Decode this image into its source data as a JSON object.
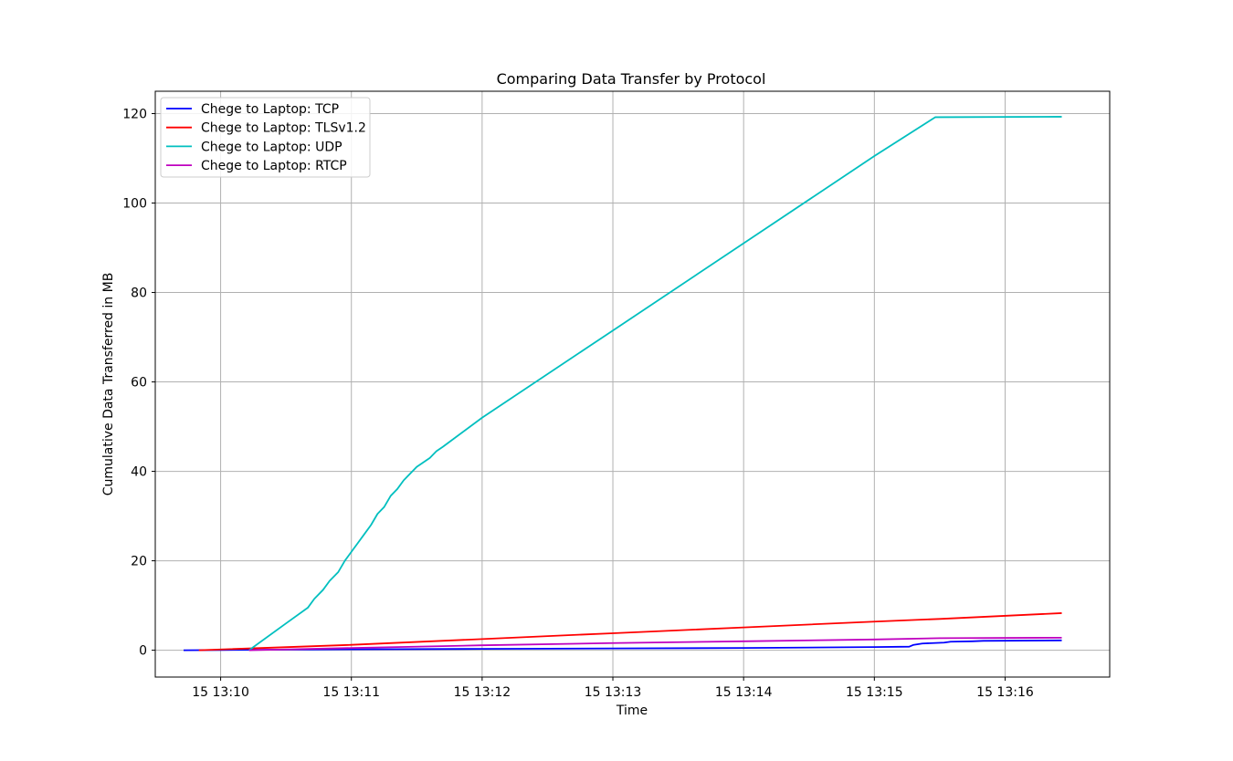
{
  "chart_data": {
    "type": "line",
    "title": "Comparing Data Transfer by Protocol",
    "xlabel": "Time",
    "ylabel": "Cumulative Data Transferred in MB",
    "x_unit": "minutes",
    "xlim": [
      "13:09:30",
      "13:16:48"
    ],
    "ylim": [
      -6,
      125
    ],
    "x_ticks": [
      {
        "time": "13:10:00",
        "label": "15 13:10"
      },
      {
        "time": "13:11:00",
        "label": "15 13:11"
      },
      {
        "time": "13:12:00",
        "label": "15 13:12"
      },
      {
        "time": "13:13:00",
        "label": "15 13:13"
      },
      {
        "time": "13:14:00",
        "label": "15 13:14"
      },
      {
        "time": "13:15:00",
        "label": "15 13:15"
      },
      {
        "time": "13:16:00",
        "label": "15 13:16"
      }
    ],
    "y_ticks": [
      0,
      20,
      40,
      60,
      80,
      100,
      120
    ],
    "grid": true,
    "legend_position": "top-left",
    "series": [
      {
        "name": "Chege to Laptop: TCP",
        "color": "#0000ff",
        "points": [
          [
            "13:09:43",
            0.0
          ],
          [
            "13:10:00",
            0.05
          ],
          [
            "13:11:00",
            0.2
          ],
          [
            "13:12:00",
            0.3
          ],
          [
            "13:13:00",
            0.4
          ],
          [
            "13:14:00",
            0.5
          ],
          [
            "13:15:00",
            0.7
          ],
          [
            "13:15:16",
            0.8
          ],
          [
            "13:15:18",
            1.2
          ],
          [
            "13:15:22",
            1.5
          ],
          [
            "13:15:32",
            1.7
          ],
          [
            "13:15:35",
            1.9
          ],
          [
            "13:15:45",
            2.0
          ],
          [
            "13:15:50",
            2.1
          ],
          [
            "13:16:26",
            2.2
          ]
        ]
      },
      {
        "name": "Chege to Laptop: TLSv1.2",
        "color": "#ff0000",
        "points": [
          [
            "13:09:50",
            0.0
          ],
          [
            "13:11:00",
            1.2
          ],
          [
            "13:12:00",
            2.5
          ],
          [
            "13:13:00",
            3.8
          ],
          [
            "13:14:00",
            5.1
          ],
          [
            "13:15:00",
            6.4
          ],
          [
            "13:15:30",
            7.0
          ],
          [
            "13:16:26",
            8.3
          ]
        ]
      },
      {
        "name": "Chege to Laptop: UDP",
        "color": "#00bfbf",
        "points": [
          [
            "13:10:13",
            0.0
          ],
          [
            "13:10:30",
            6.0
          ],
          [
            "13:10:40",
            9.5
          ],
          [
            "13:10:43",
            11.5
          ],
          [
            "13:10:47",
            13.5
          ],
          [
            "13:10:50",
            15.5
          ],
          [
            "13:10:54",
            17.5
          ],
          [
            "13:10:57",
            20.0
          ],
          [
            "13:11:00",
            22.0
          ],
          [
            "13:11:03",
            24.0
          ],
          [
            "13:11:06",
            26.0
          ],
          [
            "13:11:09",
            28.0
          ],
          [
            "13:11:12",
            30.5
          ],
          [
            "13:11:15",
            32.0
          ],
          [
            "13:11:18",
            34.5
          ],
          [
            "13:11:21",
            36.0
          ],
          [
            "13:11:24",
            38.0
          ],
          [
            "13:11:27",
            39.5
          ],
          [
            "13:11:30",
            41.0
          ],
          [
            "13:11:33",
            42.0
          ],
          [
            "13:11:36",
            43.0
          ],
          [
            "13:11:39",
            44.5
          ],
          [
            "13:11:42",
            45.5
          ],
          [
            "13:12:00",
            52.0
          ],
          [
            "13:13:00",
            71.5
          ],
          [
            "13:14:00",
            91.0
          ],
          [
            "13:15:00",
            110.5
          ],
          [
            "13:15:28",
            119.2
          ],
          [
            "13:16:26",
            119.3
          ]
        ]
      },
      {
        "name": "Chege to Laptop: RTCP",
        "color": "#bf00bf",
        "points": [
          [
            "13:10:13",
            0.0
          ],
          [
            "13:11:00",
            0.5
          ],
          [
            "13:12:00",
            1.1
          ],
          [
            "13:13:00",
            1.6
          ],
          [
            "13:14:00",
            2.0
          ],
          [
            "13:15:00",
            2.4
          ],
          [
            "13:15:30",
            2.7
          ],
          [
            "13:16:26",
            2.8
          ]
        ]
      }
    ]
  }
}
